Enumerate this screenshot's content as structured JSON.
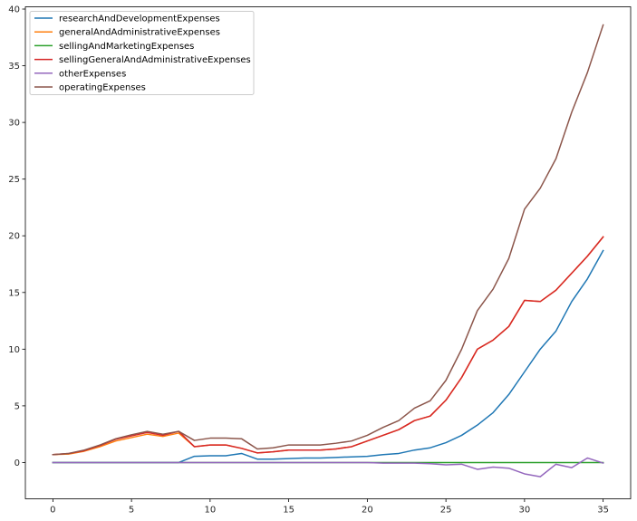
{
  "chart_data": {
    "type": "line",
    "title": "",
    "xlabel": "",
    "ylabel": "",
    "xlim": [
      -1.75,
      36.75
    ],
    "ylim": [
      -3.2,
      40.2
    ],
    "grid": false,
    "legend_position": "top-left",
    "x_ticks": [
      0,
      5,
      10,
      15,
      20,
      25,
      30,
      35
    ],
    "y_ticks": [
      0,
      5,
      10,
      15,
      20,
      25,
      30,
      35,
      40
    ],
    "x": [
      0,
      1,
      2,
      3,
      4,
      5,
      6,
      7,
      8,
      9,
      10,
      11,
      12,
      13,
      14,
      15,
      16,
      17,
      18,
      19,
      20,
      21,
      22,
      23,
      24,
      25,
      26,
      27,
      28,
      29,
      30,
      31,
      32,
      33,
      34,
      35
    ],
    "series": [
      {
        "name": "researchAndDevelopmentExpenses",
        "color": "#1f77b4",
        "values": [
          0,
          0,
          0,
          0,
          0,
          0,
          0,
          0,
          0,
          0.55,
          0.6,
          0.6,
          0.8,
          0.3,
          0.3,
          0.35,
          0.4,
          0.4,
          0.45,
          0.5,
          0.55,
          0.7,
          0.8,
          1.1,
          1.3,
          1.75,
          2.4,
          3.3,
          4.4,
          6.0,
          8.0,
          10.0,
          11.6,
          14.2,
          16.2,
          18.7
        ]
      },
      {
        "name": "generalAndAdministrativeExpenses",
        "color": "#ff7f0e",
        "values": [
          0.7,
          0.75,
          1.0,
          1.4,
          1.9,
          2.2,
          2.5,
          2.3,
          2.6,
          1.4,
          1.55,
          1.55,
          1.25,
          0.85,
          0.95,
          1.1,
          1.1,
          1.1,
          1.2,
          1.4,
          1.9,
          2.4,
          2.9,
          3.7,
          4.1,
          5.5,
          7.5,
          10.0,
          10.8,
          12.0,
          14.3,
          14.2,
          15.2,
          16.7,
          18.2,
          19.9
        ]
      },
      {
        "name": "sellingAndMarketingExpenses",
        "color": "#2ca02c",
        "values": [
          0,
          0,
          0,
          0,
          0,
          0,
          0,
          0,
          0,
          0,
          0,
          0,
          0,
          0,
          0,
          0,
          0,
          0,
          0,
          0,
          0,
          0,
          0,
          0,
          0,
          0,
          0,
          0,
          0,
          0,
          0,
          0,
          0,
          0,
          0,
          0
        ]
      },
      {
        "name": "sellingGeneralAndAdministrativeExpenses",
        "color": "#d62728",
        "values": [
          0.7,
          0.8,
          1.05,
          1.5,
          2.05,
          2.35,
          2.65,
          2.4,
          2.75,
          1.4,
          1.55,
          1.55,
          1.25,
          0.85,
          0.95,
          1.1,
          1.1,
          1.1,
          1.2,
          1.4,
          1.9,
          2.4,
          2.9,
          3.7,
          4.1,
          5.5,
          7.5,
          10.0,
          10.8,
          12.0,
          14.3,
          14.2,
          15.2,
          16.7,
          18.2,
          19.9
        ]
      },
      {
        "name": "otherExpenses",
        "color": "#9467bd",
        "values": [
          0,
          0,
          0,
          0,
          0,
          0,
          0,
          0,
          0,
          0,
          0,
          0,
          0,
          0,
          0,
          0,
          0,
          0,
          0,
          0,
          0,
          -0.05,
          -0.05,
          -0.05,
          -0.1,
          -0.2,
          -0.15,
          -0.6,
          -0.4,
          -0.5,
          -1.0,
          -1.25,
          -0.15,
          -0.45,
          0.4,
          -0.05
        ]
      },
      {
        "name": "operatingExpenses",
        "color": "#8c564b",
        "values": [
          0.7,
          0.8,
          1.1,
          1.55,
          2.1,
          2.45,
          2.75,
          2.5,
          2.75,
          1.95,
          2.15,
          2.15,
          2.1,
          1.2,
          1.3,
          1.55,
          1.55,
          1.55,
          1.7,
          1.9,
          2.4,
          3.1,
          3.7,
          4.8,
          5.45,
          7.25,
          10.0,
          13.4,
          15.3,
          18.0,
          22.35,
          24.2,
          26.8,
          30.9,
          34.4,
          38.6
        ]
      }
    ]
  }
}
